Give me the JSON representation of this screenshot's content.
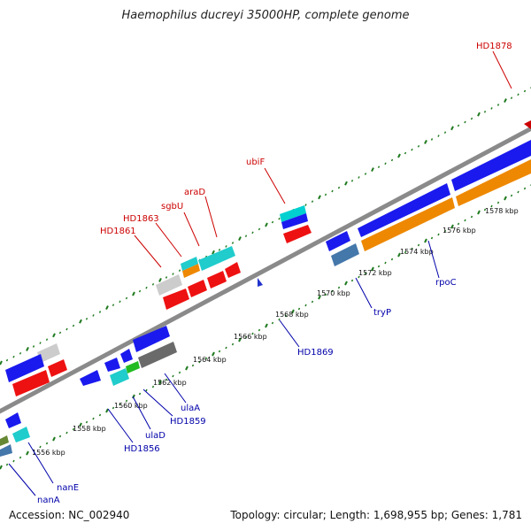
{
  "header": {
    "title": "Haemophilus ducreyi 35000HP, complete genome"
  },
  "footer": {
    "accession": "Accession: NC_002940",
    "summary": "Topology: circular; Length: 1,698,955 bp; Genes: 1,781"
  },
  "colors": {
    "backbone": "#8a8a8a",
    "tick": "#1f7a1f",
    "label_top": "#cc0000",
    "label_bottom": "#0000aa"
  },
  "scale_labels": [
    "1556 kbp",
    "1558 kbp",
    "1560 kbp",
    "1562 kbp",
    "1564 kbp",
    "1566 kbp",
    "1568 kbp",
    "1570 kbp",
    "1572 kbp",
    "1574 kbp",
    "1576 kbp",
    "1578 kbp"
  ],
  "gene_labels_top": [
    "HD1878",
    "ubiF",
    "araD",
    "sgbU",
    "HD1863",
    "HD1861"
  ],
  "gene_labels_bottom": [
    "nanA",
    "nanE",
    "HD1856",
    "ulaD",
    "HD1859",
    "ulaA",
    "HD1869",
    "tryP",
    "rpoC"
  ]
}
